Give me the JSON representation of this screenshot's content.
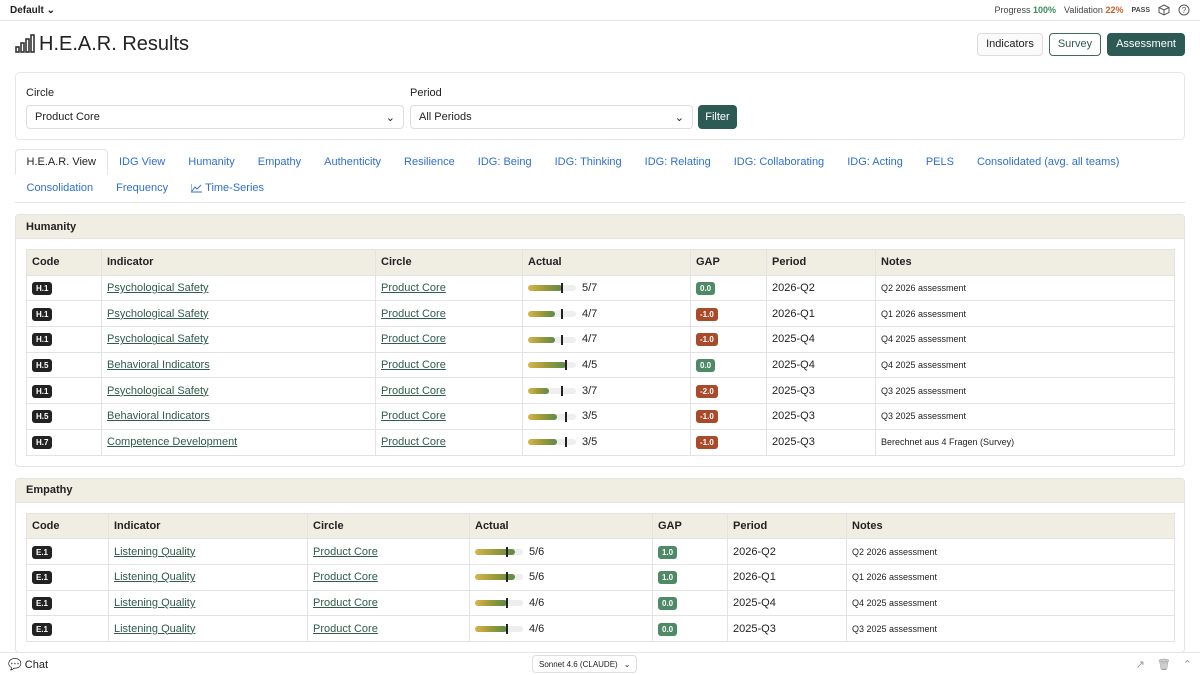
{
  "topbar": {
    "workspace": "Default",
    "progress_label": "Progress",
    "progress_value": "100%",
    "validation_label": "Validation",
    "validation_value": "22%",
    "validation_status": "PASS"
  },
  "header": {
    "title": "H.E.A.R. Results",
    "buttons": [
      "Indicators",
      "Survey",
      "Assessment"
    ]
  },
  "filters": {
    "circle_label": "Circle",
    "circle_value": "Product Core",
    "period_label": "Period",
    "period_value": "All Periods",
    "button": "Filter"
  },
  "tabs": [
    "H.E.A.R. View",
    "IDG View",
    "Humanity",
    "Empathy",
    "Authenticity",
    "Resilience",
    "IDG: Being",
    "IDG: Thinking",
    "IDG: Relating",
    "IDG: Collaborating",
    "IDG: Acting",
    "PELS",
    "Consolidated (avg. all teams)",
    "Consolidation",
    "Frequency",
    "Time-Series"
  ],
  "sections": [
    {
      "title": "Humanity",
      "columns": [
        "Code",
        "Indicator",
        "Circle",
        "Actual",
        "GAP",
        "Period",
        "Notes"
      ],
      "rows": [
        {
          "code": "H.1",
          "indicator": "Psychological Safety",
          "circle": "Product Core",
          "actual": {
            "label": "5/7",
            "score": 5,
            "max": 7,
            "target": 5
          },
          "gap": "0.0",
          "period": "2026-Q2",
          "notes": "Q2 2026 assessment"
        },
        {
          "code": "H.1",
          "indicator": "Psychological Safety",
          "circle": "Product Core",
          "actual": {
            "label": "4/7",
            "score": 4,
            "max": 7,
            "target": 5
          },
          "gap": "-1.0",
          "period": "2026-Q1",
          "notes": "Q1 2026 assessment"
        },
        {
          "code": "H.1",
          "indicator": "Psychological Safety",
          "circle": "Product Core",
          "actual": {
            "label": "4/7",
            "score": 4,
            "max": 7,
            "target": 5
          },
          "gap": "-1.0",
          "period": "2025-Q4",
          "notes": "Q4 2025 assessment"
        },
        {
          "code": "H.5",
          "indicator": "Behavioral Indicators",
          "circle": "Product Core",
          "actual": {
            "label": "4/5",
            "score": 4,
            "max": 5,
            "target": 4
          },
          "gap": "0.0",
          "period": "2025-Q4",
          "notes": "Q4 2025 assessment"
        },
        {
          "code": "H.1",
          "indicator": "Psychological Safety",
          "circle": "Product Core",
          "actual": {
            "label": "3/7",
            "score": 3,
            "max": 7,
            "target": 5
          },
          "gap": "-2.0",
          "period": "2025-Q3",
          "notes": "Q3 2025 assessment"
        },
        {
          "code": "H.5",
          "indicator": "Behavioral Indicators",
          "circle": "Product Core",
          "actual": {
            "label": "3/5",
            "score": 3,
            "max": 5,
            "target": 4
          },
          "gap": "-1.0",
          "period": "2025-Q3",
          "notes": "Q3 2025 assessment"
        },
        {
          "code": "H.7",
          "indicator": "Competence Development",
          "circle": "Product Core",
          "actual": {
            "label": "3/5",
            "score": 3,
            "max": 5,
            "target": 4
          },
          "gap": "-1.0",
          "period": "2025-Q3",
          "notes": "Berechnet aus 4 Fragen (Survey)"
        }
      ]
    },
    {
      "title": "Empathy",
      "columns": [
        "Code",
        "Indicator",
        "Circle",
        "Actual",
        "GAP",
        "Period",
        "Notes"
      ],
      "rows": [
        {
          "code": "E.1",
          "indicator": "Listening Quality",
          "circle": "Product Core",
          "actual": {
            "label": "5/6",
            "score": 5,
            "max": 6,
            "target": 4
          },
          "gap": "1.0",
          "period": "2026-Q2",
          "notes": "Q2 2026 assessment"
        },
        {
          "code": "E.1",
          "indicator": "Listening Quality",
          "circle": "Product Core",
          "actual": {
            "label": "5/6",
            "score": 5,
            "max": 6,
            "target": 4
          },
          "gap": "1.0",
          "period": "2026-Q1",
          "notes": "Q1 2026 assessment"
        },
        {
          "code": "E.1",
          "indicator": "Listening Quality",
          "circle": "Product Core",
          "actual": {
            "label": "4/6",
            "score": 4,
            "max": 6,
            "target": 4
          },
          "gap": "0.0",
          "period": "2025-Q4",
          "notes": "Q4 2025 assessment"
        },
        {
          "code": "E.1",
          "indicator": "Listening Quality",
          "circle": "Product Core",
          "actual": {
            "label": "4/6",
            "score": 4,
            "max": 6,
            "target": 4
          },
          "gap": "0.0",
          "period": "2025-Q3",
          "notes": "Q3 2025 assessment"
        }
      ]
    }
  ],
  "footer": {
    "chat": "Chat",
    "model": "Sonnet 4.6 (CLAUDE)"
  }
}
